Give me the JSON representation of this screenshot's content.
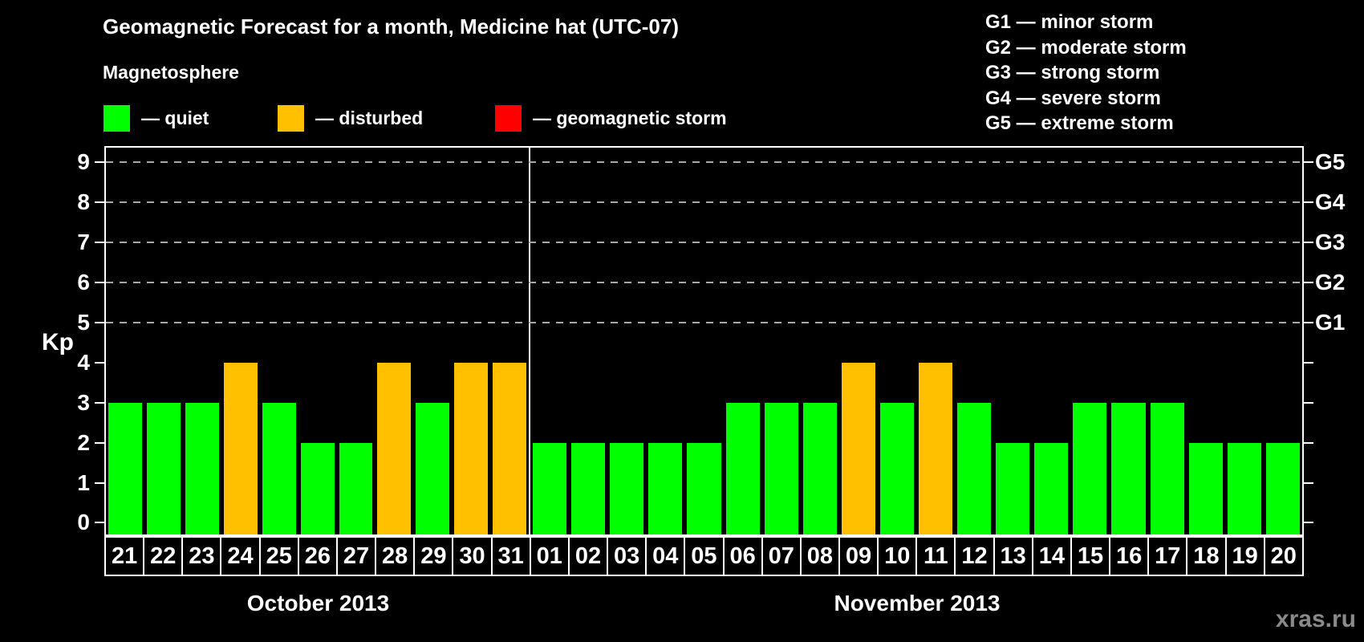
{
  "header": {
    "title": "Geomagnetic Forecast for a month, Medicine hat (UTC-07)",
    "legend_title": "Magnetosphere",
    "legend": [
      {
        "key": "quiet",
        "label": "— quiet",
        "color": "#00FF00"
      },
      {
        "key": "disturbed",
        "label": "— disturbed",
        "color": "#FFC000"
      },
      {
        "key": "storm",
        "label": "— geomagnetic storm",
        "color": "#FF0000"
      }
    ],
    "g_scale_legend": [
      "G1 — minor storm",
      "G2 — moderate storm",
      "G3 — strong storm",
      "G4 — severe storm",
      "G5 — extreme storm"
    ]
  },
  "watermark": "xras.ru",
  "chart_data": {
    "type": "bar",
    "title": "Geomagnetic Forecast for a month, Medicine hat (UTC-07)",
    "ylabel": "Kp",
    "ylim": [
      0,
      9
    ],
    "yticks": [
      0,
      1,
      2,
      3,
      4,
      5,
      6,
      7,
      8,
      9
    ],
    "gridlines_at": [
      5,
      6,
      7,
      8,
      9
    ],
    "grid": "horizontal dashed lines at Kp 5-9 (G1-G5 levels)",
    "legend_position": "top-left",
    "right_axis": [
      {
        "value": 5,
        "label": "G1"
      },
      {
        "value": 6,
        "label": "G2"
      },
      {
        "value": 7,
        "label": "G3"
      },
      {
        "value": 8,
        "label": "G4"
      },
      {
        "value": 9,
        "label": "G5"
      }
    ],
    "legend_colors": {
      "quiet": "#00FF00",
      "disturbed": "#FFC000",
      "storm": "#FF0000"
    },
    "groups": [
      {
        "label": "October 2013",
        "days": [
          "21",
          "22",
          "23",
          "24",
          "25",
          "26",
          "27",
          "28",
          "29",
          "30",
          "31"
        ],
        "values": [
          3,
          3,
          3,
          4,
          3,
          2,
          2,
          4,
          3,
          4,
          4
        ],
        "levels": [
          "quiet",
          "quiet",
          "quiet",
          "disturbed",
          "quiet",
          "quiet",
          "quiet",
          "disturbed",
          "quiet",
          "disturbed",
          "disturbed"
        ]
      },
      {
        "label": "November 2013",
        "days": [
          "01",
          "02",
          "03",
          "04",
          "05",
          "06",
          "07",
          "08",
          "09",
          "10",
          "11",
          "12",
          "13",
          "14",
          "15",
          "16",
          "17",
          "18",
          "19",
          "20"
        ],
        "values": [
          2,
          2,
          2,
          2,
          2,
          3,
          3,
          3,
          4,
          3,
          4,
          3,
          2,
          2,
          3,
          3,
          3,
          2,
          2,
          2
        ],
        "levels": [
          "quiet",
          "quiet",
          "quiet",
          "quiet",
          "quiet",
          "quiet",
          "quiet",
          "quiet",
          "disturbed",
          "quiet",
          "disturbed",
          "quiet",
          "quiet",
          "quiet",
          "quiet",
          "quiet",
          "quiet",
          "quiet",
          "quiet",
          "quiet"
        ]
      }
    ]
  }
}
